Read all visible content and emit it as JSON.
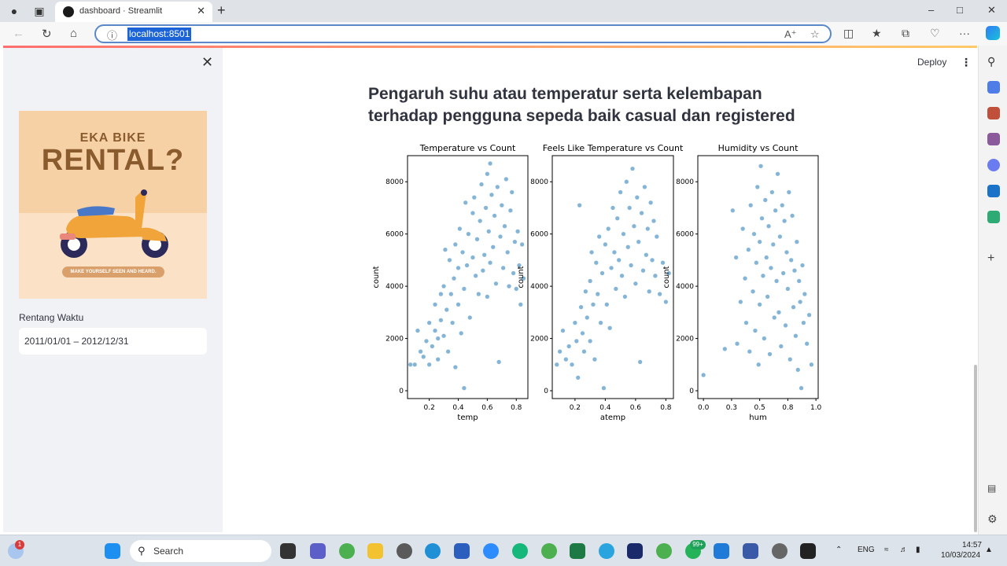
{
  "browser": {
    "tab_title": "dashboard · Streamlit",
    "url": "localhost:8501"
  },
  "sidebar": {
    "poster_line1": "EKA BIKE",
    "poster_line2": "RENTAL?",
    "poster_tagline": "MAKE YOURSELF SEEN AND HEARD.",
    "date_label": "Rentang Waktu",
    "date_value": "2011/01/01 – 2012/12/31"
  },
  "header": {
    "deploy_label": "Deploy"
  },
  "main": {
    "heading": "Pengaruh suhu atau temperatur serta kelembapan terhadap pengguna sepeda baik casual dan registered"
  },
  "chart_data": [
    {
      "type": "scatter",
      "title": "Temperature vs Count",
      "xlabel": "temp",
      "ylabel": "count",
      "xlim": [
        0.05,
        0.88
      ],
      "ylim": [
        -300,
        9000
      ],
      "xticks": [
        0.2,
        0.4,
        0.6,
        0.8
      ],
      "yticks": [
        0,
        2000,
        4000,
        6000,
        8000
      ],
      "points": [
        [
          0.07,
          1000
        ],
        [
          0.1,
          1000
        ],
        [
          0.12,
          2300
        ],
        [
          0.14,
          1500
        ],
        [
          0.16,
          1300
        ],
        [
          0.18,
          1900
        ],
        [
          0.2,
          1000
        ],
        [
          0.2,
          2600
        ],
        [
          0.22,
          1700
        ],
        [
          0.24,
          2300
        ],
        [
          0.24,
          3300
        ],
        [
          0.26,
          2000
        ],
        [
          0.26,
          1200
        ],
        [
          0.28,
          3700
        ],
        [
          0.28,
          2700
        ],
        [
          0.3,
          2100
        ],
        [
          0.3,
          4000
        ],
        [
          0.31,
          5400
        ],
        [
          0.32,
          3100
        ],
        [
          0.33,
          1500
        ],
        [
          0.34,
          5000
        ],
        [
          0.35,
          3700
        ],
        [
          0.36,
          2600
        ],
        [
          0.37,
          4300
        ],
        [
          0.38,
          5600
        ],
        [
          0.38,
          900
        ],
        [
          0.4,
          3300
        ],
        [
          0.4,
          4700
        ],
        [
          0.41,
          6200
        ],
        [
          0.42,
          2200
        ],
        [
          0.43,
          5300
        ],
        [
          0.44,
          3900
        ],
        [
          0.44,
          100
        ],
        [
          0.45,
          7200
        ],
        [
          0.46,
          4800
        ],
        [
          0.47,
          6000
        ],
        [
          0.48,
          2800
        ],
        [
          0.5,
          5100
        ],
        [
          0.5,
          6800
        ],
        [
          0.51,
          7400
        ],
        [
          0.52,
          4400
        ],
        [
          0.53,
          5800
        ],
        [
          0.54,
          3700
        ],
        [
          0.55,
          6500
        ],
        [
          0.56,
          7900
        ],
        [
          0.57,
          4600
        ],
        [
          0.58,
          5200
        ],
        [
          0.59,
          7000
        ],
        [
          0.6,
          8300
        ],
        [
          0.6,
          3600
        ],
        [
          0.61,
          6100
        ],
        [
          0.62,
          4900
        ],
        [
          0.62,
          8700
        ],
        [
          0.63,
          7500
        ],
        [
          0.64,
          5500
        ],
        [
          0.65,
          6700
        ],
        [
          0.66,
          4100
        ],
        [
          0.67,
          7800
        ],
        [
          0.68,
          1100
        ],
        [
          0.69,
          5900
        ],
        [
          0.7,
          7100
        ],
        [
          0.71,
          4700
        ],
        [
          0.72,
          6300
        ],
        [
          0.73,
          8100
        ],
        [
          0.74,
          5300
        ],
        [
          0.75,
          4000
        ],
        [
          0.76,
          6900
        ],
        [
          0.77,
          7600
        ],
        [
          0.78,
          4500
        ],
        [
          0.79,
          5700
        ],
        [
          0.8,
          3900
        ],
        [
          0.81,
          6100
        ],
        [
          0.82,
          4800
        ],
        [
          0.83,
          3300
        ],
        [
          0.84,
          5600
        ],
        [
          0.85,
          4300
        ]
      ]
    },
    {
      "type": "scatter",
      "title": "Feels Like Temperature vs Count",
      "xlabel": "atemp",
      "ylabel": "count",
      "xlim": [
        0.05,
        0.85
      ],
      "ylim": [
        -300,
        9000
      ],
      "xticks": [
        0.2,
        0.4,
        0.6,
        0.8
      ],
      "yticks": [
        0,
        2000,
        4000,
        6000,
        8000
      ],
      "points": [
        [
          0.08,
          1000
        ],
        [
          0.1,
          1500
        ],
        [
          0.12,
          2300
        ],
        [
          0.14,
          1200
        ],
        [
          0.16,
          1700
        ],
        [
          0.18,
          1000
        ],
        [
          0.2,
          2600
        ],
        [
          0.21,
          1900
        ],
        [
          0.22,
          500
        ],
        [
          0.23,
          7100
        ],
        [
          0.24,
          3200
        ],
        [
          0.25,
          2200
        ],
        [
          0.26,
          1500
        ],
        [
          0.27,
          3800
        ],
        [
          0.28,
          2800
        ],
        [
          0.3,
          4200
        ],
        [
          0.3,
          1900
        ],
        [
          0.31,
          5300
        ],
        [
          0.32,
          3300
        ],
        [
          0.33,
          1200
        ],
        [
          0.34,
          4900
        ],
        [
          0.35,
          3700
        ],
        [
          0.36,
          5900
        ],
        [
          0.37,
          2600
        ],
        [
          0.38,
          4500
        ],
        [
          0.39,
          100
        ],
        [
          0.4,
          5600
        ],
        [
          0.41,
          3300
        ],
        [
          0.42,
          6200
        ],
        [
          0.43,
          2400
        ],
        [
          0.44,
          4700
        ],
        [
          0.45,
          7000
        ],
        [
          0.46,
          5300
        ],
        [
          0.47,
          3900
        ],
        [
          0.48,
          6600
        ],
        [
          0.49,
          5000
        ],
        [
          0.5,
          7600
        ],
        [
          0.51,
          4400
        ],
        [
          0.52,
          6000
        ],
        [
          0.53,
          3600
        ],
        [
          0.54,
          8000
        ],
        [
          0.55,
          5500
        ],
        [
          0.56,
          7000
        ],
        [
          0.57,
          4800
        ],
        [
          0.58,
          8500
        ],
        [
          0.59,
          6300
        ],
        [
          0.6,
          4100
        ],
        [
          0.61,
          7400
        ],
        [
          0.62,
          5700
        ],
        [
          0.63,
          1100
        ],
        [
          0.64,
          6800
        ],
        [
          0.65,
          4600
        ],
        [
          0.66,
          7800
        ],
        [
          0.67,
          5200
        ],
        [
          0.68,
          6200
        ],
        [
          0.69,
          3800
        ],
        [
          0.7,
          7200
        ],
        [
          0.71,
          5000
        ],
        [
          0.72,
          6500
        ],
        [
          0.73,
          4400
        ],
        [
          0.74,
          5900
        ],
        [
          0.76,
          3700
        ],
        [
          0.78,
          4900
        ],
        [
          0.8,
          3400
        ],
        [
          0.82,
          4500
        ]
      ]
    },
    {
      "type": "scatter",
      "title": "Humidity vs Count",
      "xlabel": "hum",
      "ylabel": "count",
      "xlim": [
        -0.05,
        1.02
      ],
      "ylim": [
        -300,
        9000
      ],
      "xticks": [
        0.0,
        0.25,
        0.5,
        0.75,
        1.0
      ],
      "yticks": [
        0,
        2000,
        4000,
        6000,
        8000
      ],
      "points": [
        [
          0.0,
          600
        ],
        [
          0.19,
          1600
        ],
        [
          0.26,
          6900
        ],
        [
          0.29,
          5100
        ],
        [
          0.3,
          1800
        ],
        [
          0.33,
          3400
        ],
        [
          0.35,
          6200
        ],
        [
          0.37,
          4300
        ],
        [
          0.38,
          2600
        ],
        [
          0.4,
          5400
        ],
        [
          0.41,
          1500
        ],
        [
          0.42,
          7100
        ],
        [
          0.44,
          3800
        ],
        [
          0.45,
          6000
        ],
        [
          0.46,
          2300
        ],
        [
          0.47,
          4900
        ],
        [
          0.48,
          7800
        ],
        [
          0.49,
          1000
        ],
        [
          0.5,
          5700
        ],
        [
          0.5,
          3300
        ],
        [
          0.51,
          8600
        ],
        [
          0.52,
          6600
        ],
        [
          0.53,
          4400
        ],
        [
          0.54,
          2000
        ],
        [
          0.55,
          7300
        ],
        [
          0.56,
          5100
        ],
        [
          0.57,
          3600
        ],
        [
          0.58,
          6300
        ],
        [
          0.59,
          1400
        ],
        [
          0.6,
          4700
        ],
        [
          0.61,
          7600
        ],
        [
          0.62,
          5600
        ],
        [
          0.63,
          2800
        ],
        [
          0.64,
          6900
        ],
        [
          0.65,
          4200
        ],
        [
          0.66,
          8300
        ],
        [
          0.67,
          3000
        ],
        [
          0.68,
          5900
        ],
        [
          0.69,
          1700
        ],
        [
          0.7,
          7100
        ],
        [
          0.71,
          4500
        ],
        [
          0.72,
          6500
        ],
        [
          0.73,
          2500
        ],
        [
          0.74,
          5300
        ],
        [
          0.75,
          3900
        ],
        [
          0.76,
          7600
        ],
        [
          0.77,
          1200
        ],
        [
          0.78,
          5000
        ],
        [
          0.79,
          6700
        ],
        [
          0.8,
          3200
        ],
        [
          0.81,
          4600
        ],
        [
          0.82,
          2100
        ],
        [
          0.83,
          5700
        ],
        [
          0.84,
          800
        ],
        [
          0.85,
          4200
        ],
        [
          0.86,
          3400
        ],
        [
          0.87,
          100
        ],
        [
          0.88,
          4800
        ],
        [
          0.89,
          2600
        ],
        [
          0.9,
          3700
        ],
        [
          0.92,
          1800
        ],
        [
          0.94,
          2900
        ],
        [
          0.96,
          1000
        ]
      ]
    }
  ],
  "taskbar": {
    "search_label": "Search",
    "lang": "ENG",
    "time": "14:57",
    "date": "10/03/2024"
  }
}
